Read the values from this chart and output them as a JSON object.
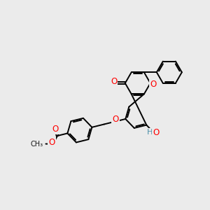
{
  "bg_color": "#ebebeb",
  "bond_color": "#000000",
  "bond_lw": 1.4,
  "atom_colors": {
    "O": "#ff0000",
    "H": "#4a8fa8",
    "C": "#000000"
  },
  "font_size": 8.5,
  "figsize": [
    3.0,
    3.0
  ],
  "dpi": 100,
  "xlim": [
    -2.0,
    6.5
  ],
  "ylim": [
    -1.5,
    5.5
  ]
}
